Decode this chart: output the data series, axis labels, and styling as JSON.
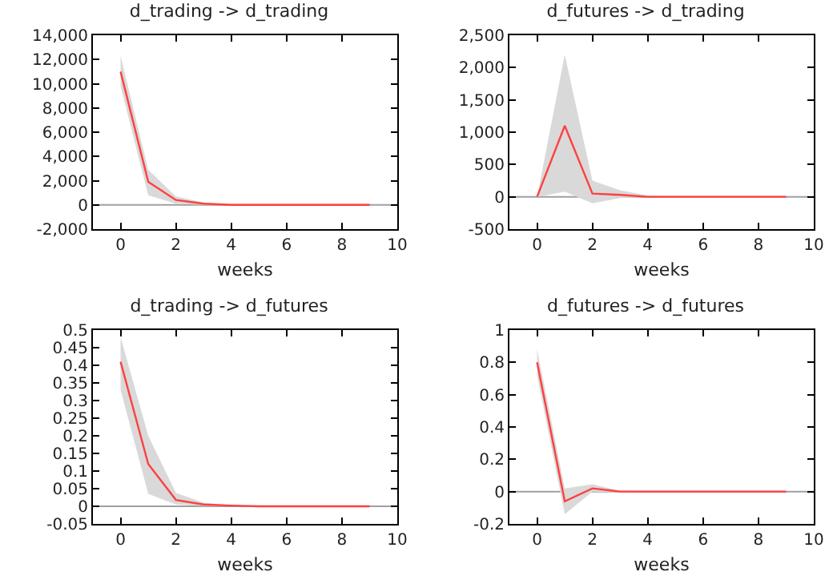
{
  "chart_data": [
    {
      "type": "line",
      "title": "d_trading -> d_trading",
      "xlabel": "weeks",
      "x": [
        0,
        1,
        2,
        3,
        4,
        5,
        6,
        7,
        8,
        9
      ],
      "xlim": [
        -1,
        10
      ],
      "xticks": [
        0,
        2,
        4,
        6,
        8,
        10
      ],
      "ylim": [
        -2000,
        14000
      ],
      "yticks": [
        {
          "value": -2000,
          "label": "-2,000"
        },
        0,
        {
          "value": 2000,
          "label": "2,000"
        },
        {
          "value": 4000,
          "label": "4,000"
        },
        {
          "value": 6000,
          "label": "6,000"
        },
        {
          "value": 8000,
          "label": "8,000"
        },
        {
          "value": 10000,
          "label": "10,000"
        },
        {
          "value": 12000,
          "label": "12,000"
        },
        {
          "value": 14000,
          "label": "14,000"
        }
      ],
      "grid": false,
      "marker": "none",
      "line_style": "solid",
      "ref_lines": [
        {
          "axis": "y",
          "value": 0,
          "color": "#a0a0a0"
        }
      ],
      "series": [
        {
          "color": "#ff4040",
          "values": [
            11000,
            1900,
            400,
            100,
            0,
            0,
            0,
            0,
            0,
            0
          ],
          "lower": [
            9800,
            800,
            100,
            0,
            0,
            0,
            0,
            0,
            0,
            0
          ],
          "upper": [
            12300,
            2900,
            700,
            200,
            0,
            0,
            0,
            0,
            0,
            0
          ]
        }
      ]
    },
    {
      "type": "line",
      "title": "d_futures -> d_trading",
      "xlabel": "weeks",
      "x": [
        0,
        1,
        2,
        3,
        4,
        5,
        6,
        7,
        8,
        9
      ],
      "xlim": [
        -1,
        10
      ],
      "xticks": [
        0,
        2,
        4,
        6,
        8,
        10
      ],
      "ylim": [
        -500,
        2500
      ],
      "yticks": [
        -500,
        0,
        500,
        {
          "value": 1000,
          "label": "1,000"
        },
        {
          "value": 1500,
          "label": "1,500"
        },
        {
          "value": 2000,
          "label": "2,000"
        },
        {
          "value": 2500,
          "label": "2,500"
        }
      ],
      "grid": false,
      "marker": "none",
      "line_style": "solid",
      "ref_lines": [
        {
          "axis": "y",
          "value": 0,
          "color": "#a0a0a0"
        }
      ],
      "series": [
        {
          "color": "#ff4040",
          "values": [
            0,
            1100,
            50,
            30,
            0,
            0,
            0,
            0,
            0,
            0
          ],
          "lower": [
            0,
            80,
            -100,
            -20,
            0,
            0,
            0,
            0,
            0,
            0
          ],
          "upper": [
            0,
            2200,
            250,
            100,
            20,
            0,
            0,
            0,
            0,
            0
          ]
        }
      ]
    },
    {
      "type": "line",
      "title": "d_trading -> d_futures",
      "xlabel": "weeks",
      "x": [
        0,
        1,
        2,
        3,
        4,
        5,
        6,
        7,
        8,
        9
      ],
      "xlim": [
        -1,
        10
      ],
      "xticks": [
        0,
        2,
        4,
        6,
        8,
        10
      ],
      "ylim": [
        -0.05,
        0.5
      ],
      "yticks": [
        -0.05,
        0,
        0.05,
        0.1,
        0.15,
        0.2,
        0.25,
        0.3,
        0.35,
        0.4,
        0.45,
        0.5
      ],
      "grid": false,
      "marker": "none",
      "line_style": "solid",
      "ref_lines": [
        {
          "axis": "y",
          "value": 0,
          "color": "#a0a0a0"
        }
      ],
      "series": [
        {
          "color": "#ff4040",
          "values": [
            0.41,
            0.12,
            0.018,
            0.005,
            0.002,
            0,
            0,
            0,
            0,
            0
          ],
          "lower": [
            0.33,
            0.035,
            0.005,
            0.001,
            0,
            0,
            0,
            0,
            0,
            0
          ],
          "upper": [
            0.48,
            0.2,
            0.038,
            0.01,
            0.003,
            0,
            0,
            0,
            0,
            0
          ]
        }
      ]
    },
    {
      "type": "line",
      "title": "d_futures -> d_futures",
      "xlabel": "weeks",
      "x": [
        0,
        1,
        2,
        3,
        4,
        5,
        6,
        7,
        8,
        9
      ],
      "xlim": [
        -1,
        10
      ],
      "xticks": [
        0,
        2,
        4,
        6,
        8,
        10
      ],
      "ylim": [
        -0.2,
        1
      ],
      "yticks": [
        -0.2,
        0,
        0.2,
        0.4,
        0.6,
        0.8,
        1
      ],
      "grid": false,
      "marker": "none",
      "line_style": "solid",
      "ref_lines": [
        {
          "axis": "y",
          "value": 0,
          "color": "#a0a0a0"
        }
      ],
      "series": [
        {
          "color": "#ff4040",
          "values": [
            0.8,
            -0.06,
            0.02,
            0,
            0,
            0,
            0,
            0,
            0,
            0
          ],
          "lower": [
            0.72,
            -0.14,
            0,
            -0.005,
            0,
            0,
            0,
            0,
            0,
            0
          ],
          "upper": [
            0.88,
            0.02,
            0.045,
            0.005,
            0,
            0,
            0,
            0,
            0,
            0
          ]
        }
      ]
    }
  ]
}
